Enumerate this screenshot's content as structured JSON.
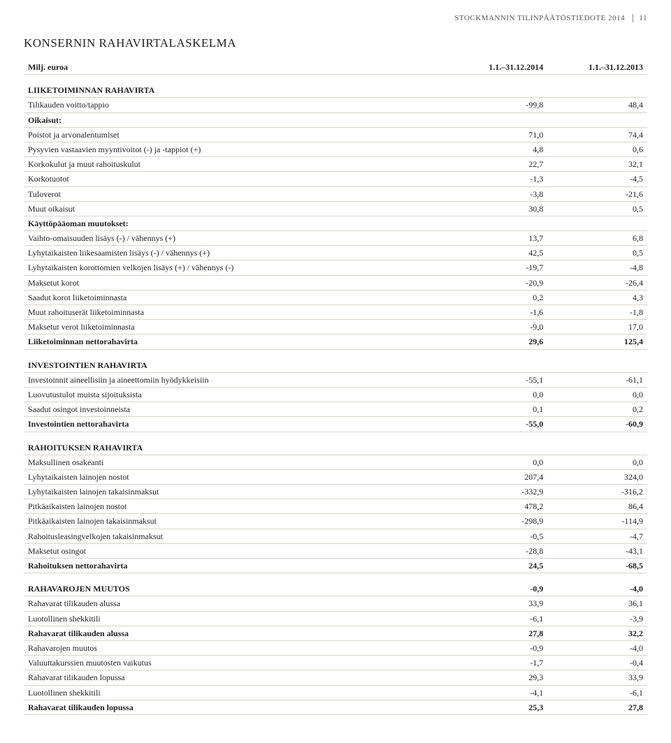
{
  "header": {
    "doc_title": "STOCKMANNIN TILINPÄÄTÖSTIEDOTE 2014",
    "page_num": "11"
  },
  "title": "KONSERNIN RAHAVIRTALASKELMA",
  "columns": {
    "label": "Milj. euroa",
    "c1": "1.1.–31.12.2014",
    "c2": "1.1.–31.12.2013"
  },
  "sections": [
    {
      "head": "LIIKETOIMINNAN RAHAVIRTA",
      "rows": [
        {
          "label": "Tilikauden voitto/tappio",
          "v1": "-99,8",
          "v2": "48,4"
        },
        {
          "label": "Oikaisut:",
          "style": "subhead"
        },
        {
          "label": "Poistot ja arvonalentumiset",
          "v1": "71,0",
          "v2": "74,4"
        },
        {
          "label": "Pysyvien vastaavien myyntivoitot (-) ja -tappiot (+)",
          "v1": "4,8",
          "v2": "0,6"
        },
        {
          "label": "Korkokulut ja muut rahoituskulut",
          "v1": "22,7",
          "v2": "32,1"
        },
        {
          "label": "Korkotuotot",
          "v1": "-1,3",
          "v2": "-4,5"
        },
        {
          "label": "Tuloverot",
          "v1": "-3,8",
          "v2": "-21,6"
        },
        {
          "label": "Muut oikaisut",
          "v1": "30,8",
          "v2": "0,5"
        },
        {
          "label": "Käyttöpääoman muutokset:",
          "style": "subhead"
        },
        {
          "label": "Vaihto-omaisuuden lisäys (-) / vähennys (+)",
          "v1": "13,7",
          "v2": "6,8"
        },
        {
          "label": "Lyhytaikaisten liikesaamisten lisäys (-) / vähennys (+)",
          "v1": "42,5",
          "v2": "0,5"
        },
        {
          "label": "Lyhytaikaisten korottomien velkojen lisäys (+) / vähennys (-)",
          "v1": "-19,7",
          "v2": "-4,8"
        },
        {
          "label": "Maksetut korot",
          "v1": "-20,9",
          "v2": "-26,4"
        },
        {
          "label": "Saadut korot liiketoiminnasta",
          "v1": "0,2",
          "v2": "4,3"
        },
        {
          "label": "Muut rahoituserät liiketoiminnasta",
          "v1": "-1,6",
          "v2": "-1,8"
        },
        {
          "label": "Maksetut verot liiketoiminnasta",
          "v1": "-9,0",
          "v2": "17,0"
        },
        {
          "label": "Liiketoiminnan nettorahavirta",
          "v1": "29,6",
          "v2": "125,4",
          "style": "total"
        }
      ]
    },
    {
      "head": "INVESTOINTIEN RAHAVIRTA",
      "rows": [
        {
          "label": "Investoinnit aineellisiin ja aineettomiin hyödykkeisiin",
          "v1": "-55,1",
          "v2": "-61,1"
        },
        {
          "label": "Luovutustulot muista sijoituksista",
          "v1": "0,0",
          "v2": "0,0"
        },
        {
          "label": "Saadut osingot investoinneista",
          "v1": "0,1",
          "v2": "0,2"
        },
        {
          "label": "Investointien nettorahavirta",
          "v1": "-55,0",
          "v2": "-60,9",
          "style": "total"
        }
      ]
    },
    {
      "head": "RAHOITUKSEN RAHAVIRTA",
      "rows": [
        {
          "label": "Maksullinen osakeanti",
          "v1": "0,0",
          "v2": "0,0"
        },
        {
          "label": "Lyhytaikaisten lainojen nostot",
          "v1": "207,4",
          "v2": "324,0"
        },
        {
          "label": "Lyhytaikaisten lainojen takaisinmaksut",
          "v1": "-332,9",
          "v2": "-316,2"
        },
        {
          "label": "Pitkäaikaisten lainojen nostot",
          "v1": "478,2",
          "v2": "86,4"
        },
        {
          "label": "Pitkäaikaisten lainojen takaisinmaksut",
          "v1": "-298,9",
          "v2": "-114,9"
        },
        {
          "label": "Rahoitusleasingvelkojen takaisinmaksut",
          "v1": "-0,5",
          "v2": "-4,7"
        },
        {
          "label": "Maksetut osingot",
          "v1": "-28,8",
          "v2": "-43,1"
        },
        {
          "label": "Rahoituksen nettorahavirta",
          "v1": "24,5",
          "v2": "-68,5",
          "style": "total"
        }
      ]
    },
    {
      "head": "RAHAVAROJEN MUUTOS",
      "head_v1": "-0,9",
      "head_v2": "-4,0",
      "rows": [
        {
          "label": "Rahavarat tilikauden alussa",
          "v1": "33,9",
          "v2": "36,1"
        },
        {
          "label": "Luotollinen shekkitili",
          "v1": "-6,1",
          "v2": "-3,9"
        },
        {
          "label": "Rahavarat tilikauden alussa",
          "v1": "27,8",
          "v2": "32,2",
          "style": "total"
        },
        {
          "label": "Rahavarojen muutos",
          "v1": "-0,9",
          "v2": "-4,0"
        },
        {
          "label": "Valuuttakurssien muutosten vaikutus",
          "v1": "-1,7",
          "v2": "-0,4"
        },
        {
          "label": "Rahavarat tilikauden lopussa",
          "v1": "29,3",
          "v2": "33,9"
        },
        {
          "label": "Luotollinen shekkitili",
          "v1": "-4,1",
          "v2": "-6,1"
        },
        {
          "label": "Rahavarat tilikauden lopussa",
          "v1": "25,3",
          "v2": "27,8",
          "style": "total"
        }
      ]
    }
  ]
}
